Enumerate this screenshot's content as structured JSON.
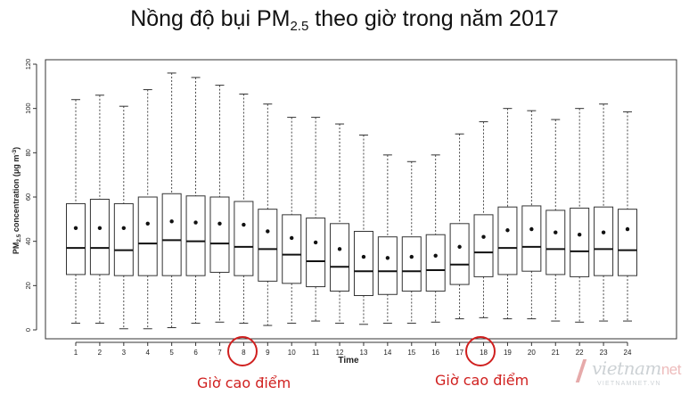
{
  "title": {
    "main": "Nồng độ bụi PM",
    "sub": "2.5",
    "rest": " theo giờ trong năm 2017"
  },
  "annotations": {
    "left_note": "Giờ cao điểm",
    "right_note": "Giờ cao điểm",
    "highlighted_hours": [
      "8",
      "18"
    ],
    "note_color": "#d0201f"
  },
  "watermark": {
    "brand": "vietnam",
    "brand_suffix": "net",
    "domain": "VIETNAMNET.VN"
  },
  "chart_data": {
    "type": "boxplot",
    "title": "Nồng độ bụi PM2.5 theo giờ trong năm 2017",
    "xlabel": "Time",
    "ylabel_main": "PM",
    "ylabel_sub": "2.5",
    "ylabel_rest": " concentration (",
    "ylabel_unit": "μg m",
    "ylabel_sup": "-3",
    "ylabel_close": ")",
    "ylim": [
      0,
      120
    ],
    "yticks": [
      0,
      20,
      40,
      60,
      80,
      100,
      120
    ],
    "ytick_labels": [
      "0",
      "20",
      "40",
      "60",
      "80",
      "100",
      "120"
    ],
    "categories": [
      "1",
      "2",
      "3",
      "4",
      "5",
      "6",
      "7",
      "8",
      "9",
      "10",
      "11",
      "12",
      "13",
      "14",
      "15",
      "16",
      "17",
      "18",
      "19",
      "20",
      "21",
      "22",
      "23",
      "24"
    ],
    "min": [
      3,
      3,
      0.5,
      0.5,
      1,
      3,
      3.5,
      3,
      2,
      3,
      4,
      3,
      2.5,
      3,
      3,
      3.5,
      5,
      5.5,
      5,
      5,
      4,
      3.5,
      4,
      4
    ],
    "q1": [
      25,
      25,
      24.5,
      24.5,
      24.5,
      24.5,
      26,
      24.5,
      22,
      21,
      19.5,
      17.5,
      15.5,
      16,
      17.5,
      17.5,
      20.5,
      24,
      25,
      26.5,
      25,
      24,
      24.5,
      24.5
    ],
    "median": [
      37,
      37,
      36,
      39,
      40.5,
      40,
      39,
      37.5,
      36.5,
      34,
      31,
      28.5,
      26.5,
      26.5,
      26.5,
      27,
      29.5,
      35,
      37,
      37.5,
      36.5,
      35.5,
      36.5,
      36
    ],
    "q3": [
      57,
      59,
      57,
      60,
      61.5,
      60.5,
      60,
      58,
      54.5,
      52,
      50.5,
      48,
      44.5,
      42,
      42,
      43,
      48,
      52,
      55.5,
      56,
      54,
      55,
      55.5,
      54.5
    ],
    "max": [
      104,
      106,
      101,
      108.5,
      116,
      114,
      110.5,
      106.5,
      102,
      96,
      96,
      93,
      88,
      79,
      76,
      79,
      88.5,
      94,
      100,
      99,
      95,
      100,
      102,
      98.5
    ],
    "mean": [
      46,
      46,
      46,
      48,
      49,
      48.5,
      48,
      47.5,
      44.5,
      41.5,
      39.5,
      36.5,
      33,
      32.5,
      33,
      33.5,
      37.5,
      42,
      45,
      45.5,
      44,
      43,
      44,
      45.5
    ],
    "grid": false,
    "legend": "none"
  }
}
